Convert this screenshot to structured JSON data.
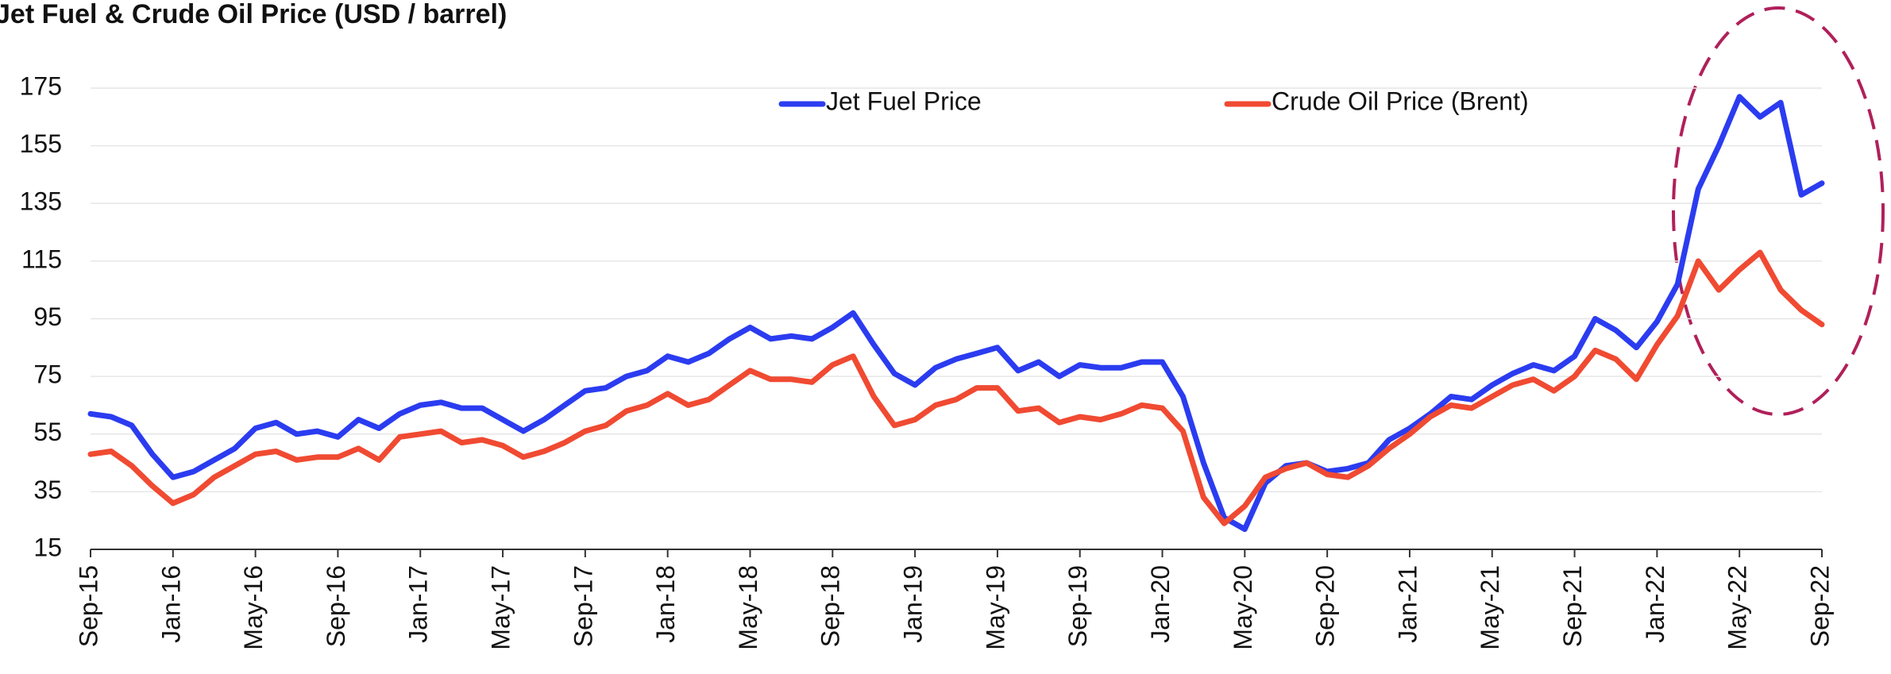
{
  "chart_data": {
    "type": "line",
    "title": "Jet Fuel & Crude Oil Price (USD / barrel)",
    "categories": [
      "Sep-15",
      null,
      null,
      null,
      "Jan-16",
      null,
      null,
      null,
      "May-16",
      null,
      null,
      null,
      "Sep-16",
      null,
      null,
      null,
      "Jan-17",
      null,
      null,
      null,
      "May-17",
      null,
      null,
      null,
      "Sep-17",
      null,
      null,
      null,
      "Jan-18",
      null,
      null,
      null,
      "May-18",
      null,
      null,
      null,
      "Sep-18",
      null,
      null,
      null,
      "Jan-19",
      null,
      null,
      null,
      "May-19",
      null,
      null,
      null,
      "Sep-19",
      null,
      null,
      null,
      "Jan-20",
      null,
      null,
      null,
      "May-20",
      null,
      null,
      null,
      "Sep-20",
      null,
      null,
      null,
      "Jan-21",
      null,
      null,
      null,
      "May-21",
      null,
      null,
      null,
      "Sep-21",
      null,
      null,
      null,
      "Jan-22",
      null,
      null,
      null,
      "May-22",
      null,
      null,
      null,
      "Sep-22"
    ],
    "series": [
      {
        "name": "Jet Fuel Price",
        "color": "#2b3cf0",
        "values": [
          62,
          61,
          58,
          48,
          40,
          42,
          46,
          50,
          57,
          59,
          55,
          56,
          54,
          60,
          57,
          62,
          65,
          66,
          64,
          64,
          60,
          56,
          60,
          65,
          70,
          71,
          75,
          77,
          82,
          80,
          83,
          88,
          92,
          88,
          89,
          88,
          92,
          97,
          86,
          76,
          72,
          78,
          81,
          83,
          85,
          77,
          80,
          75,
          79,
          78,
          78,
          80,
          80,
          68,
          45,
          26,
          22,
          38,
          44,
          45,
          42,
          43,
          45,
          53,
          57,
          62,
          68,
          67,
          72,
          76,
          79,
          77,
          82,
          95,
          91,
          85,
          94,
          107,
          140,
          155,
          172,
          165,
          170,
          138,
          142
        ]
      },
      {
        "name": "Crude Oil Price (Brent)",
        "color": "#f04a32",
        "values": [
          48,
          49,
          44,
          37,
          31,
          34,
          40,
          44,
          48,
          49,
          46,
          47,
          47,
          50,
          46,
          54,
          55,
          56,
          52,
          53,
          51,
          47,
          49,
          52,
          56,
          58,
          63,
          65,
          69,
          65,
          67,
          72,
          77,
          74,
          74,
          73,
          79,
          82,
          68,
          58,
          60,
          65,
          67,
          71,
          71,
          63,
          64,
          59,
          61,
          60,
          62,
          65,
          64,
          56,
          33,
          24,
          30,
          40,
          43,
          45,
          41,
          40,
          44,
          50,
          55,
          61,
          65,
          64,
          68,
          72,
          74,
          70,
          75,
          84,
          81,
          74,
          86,
          96,
          115,
          105,
          112,
          118,
          105,
          98,
          93
        ]
      }
    ],
    "ylim": [
      15,
      175
    ],
    "yticks": [
      15,
      35,
      55,
      75,
      95,
      115,
      135,
      155,
      175
    ],
    "grid": true
  }
}
